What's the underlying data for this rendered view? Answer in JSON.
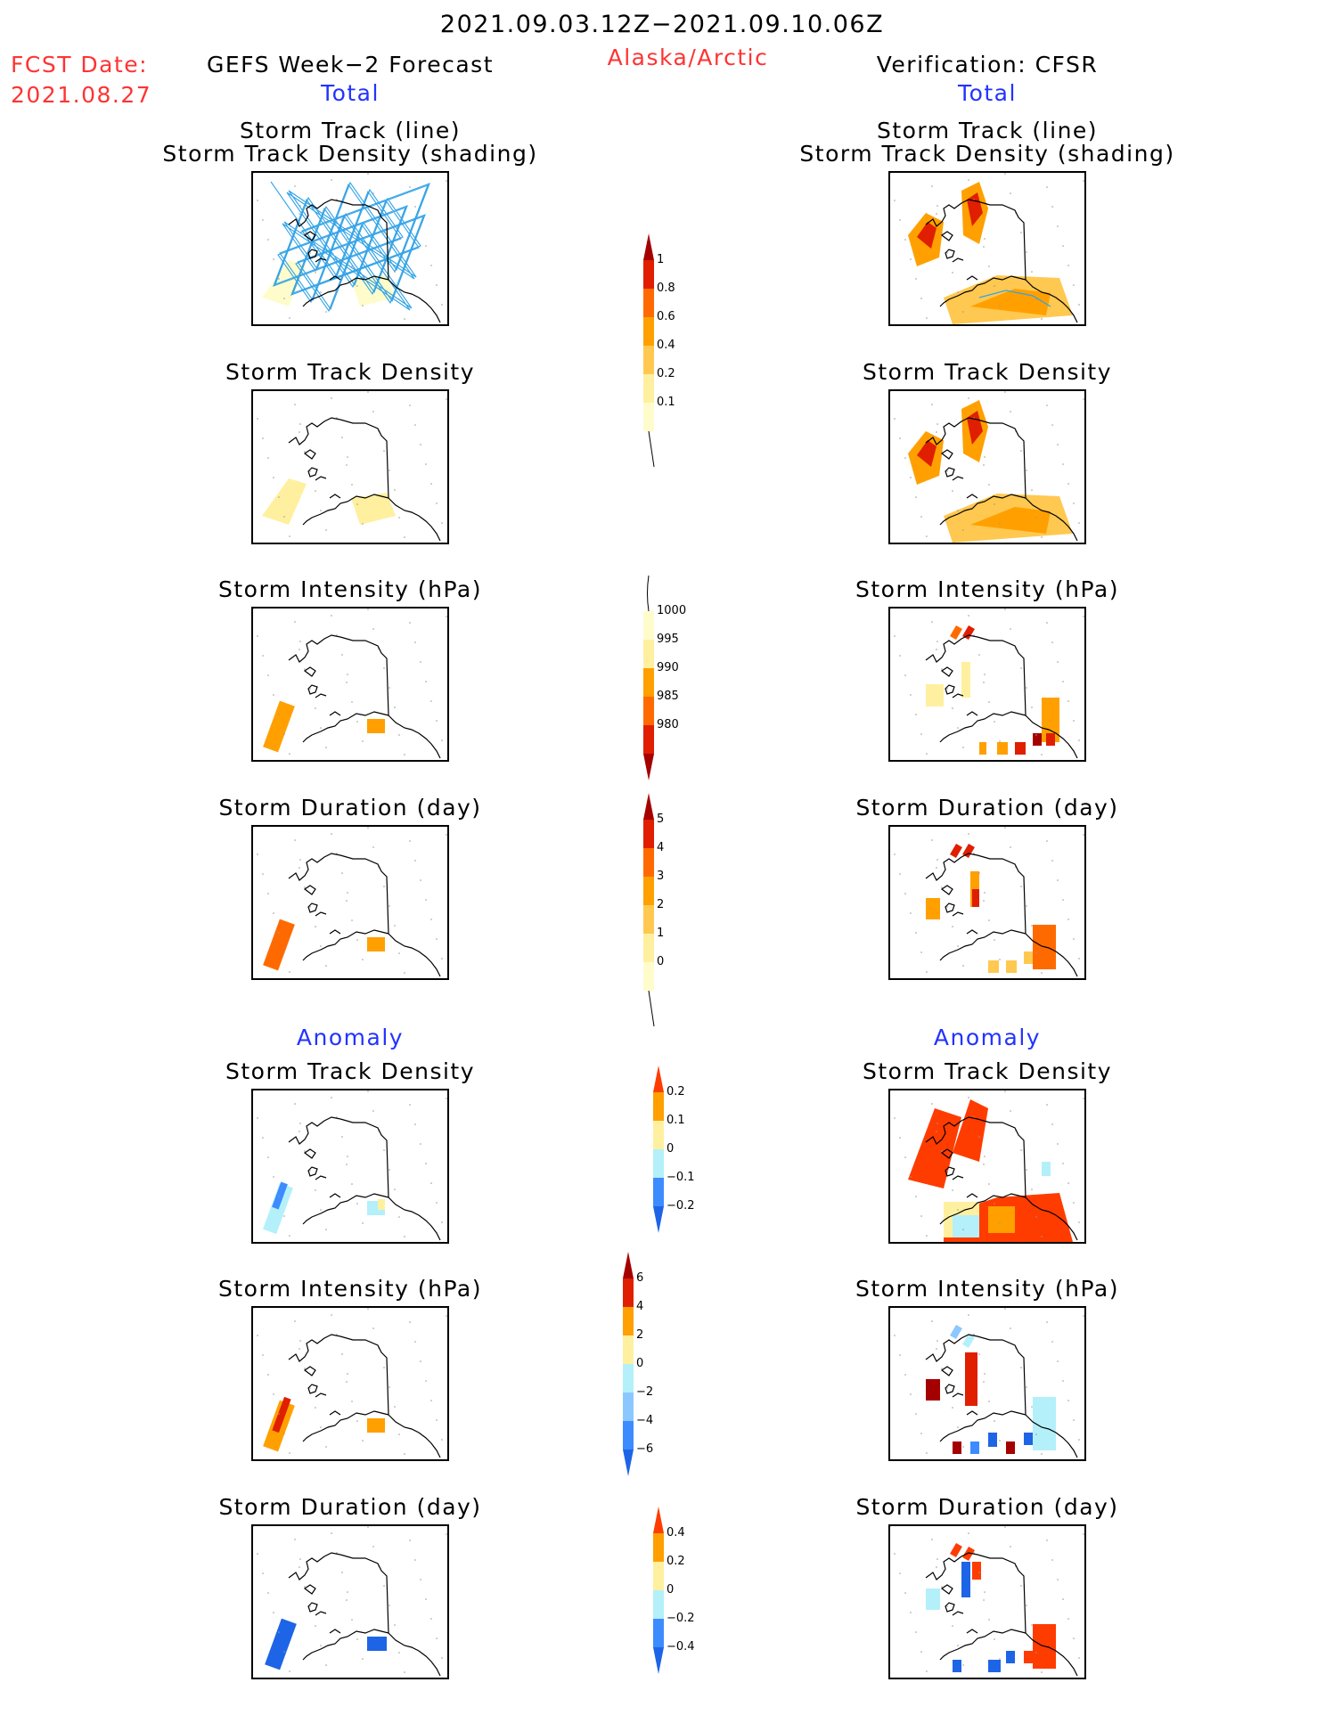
{
  "header": {
    "date_range": "2021.09.03.12Z−2021.09.10.06Z",
    "fcst_label": "FCST Date:",
    "fcst_date": "2021.08.27",
    "left_title": "GEFS Week−2 Forecast",
    "region": "Alaska/Arctic",
    "right_title": "Verification: CFSR"
  },
  "sections": {
    "total": "Total",
    "anomaly": "Anomaly"
  },
  "panel_titles": {
    "track_line": "Storm Track (line)",
    "track_shading": "Storm Track Density (shading)",
    "density": "Storm Track Density",
    "intensity": "Storm Intensity (hPa)",
    "duration": "Storm Duration (day)"
  },
  "colorbars": {
    "density_total": {
      "labels": [
        "1",
        "0.8",
        "0.6",
        "0.4",
        "0.2",
        "0.1"
      ],
      "colors": [
        "#a50000",
        "#e01e00",
        "#ff6a00",
        "#ffa000",
        "#ffc850",
        "#fff0a0",
        "#fffccc"
      ]
    },
    "intensity_total": {
      "labels": [
        "1000",
        "995",
        "990",
        "985",
        "980"
      ],
      "colors": [
        "#fffccc",
        "#fff0a0",
        "#ffa000",
        "#ff6a00",
        "#e01e00",
        "#a50000"
      ]
    },
    "duration_total": {
      "labels": [
        "5",
        "4",
        "3",
        "2",
        "1",
        "0"
      ],
      "colors": [
        "#a50000",
        "#e01e00",
        "#ff6a00",
        "#ffa000",
        "#ffc850",
        "#fff0a0",
        "#fffccc"
      ]
    },
    "density_anom": {
      "labels": [
        "0.2",
        "0.1",
        "0",
        "−0.1",
        "−0.2"
      ],
      "colors": [
        "#ff3c00",
        "#ffa000",
        "#fff0a0",
        "#b4f0fa",
        "#3c8cff",
        "#1e64e6"
      ]
    },
    "intensity_anom": {
      "labels": [
        "6",
        "4",
        "2",
        "0",
        "−2",
        "−4",
        "−6"
      ],
      "colors": [
        "#a50000",
        "#e01e00",
        "#ffa000",
        "#fff0a0",
        "#b4f0fa",
        "#8cc8ff",
        "#3c8cff",
        "#1e64e6"
      ]
    },
    "duration_anom": {
      "labels": [
        "0.4",
        "0.2",
        "0",
        "−0.2",
        "−0.4"
      ],
      "colors": [
        "#ff3c00",
        "#ffa000",
        "#fff0a0",
        "#b4f0fa",
        "#3c8cff",
        "#1e64e6"
      ]
    }
  }
}
